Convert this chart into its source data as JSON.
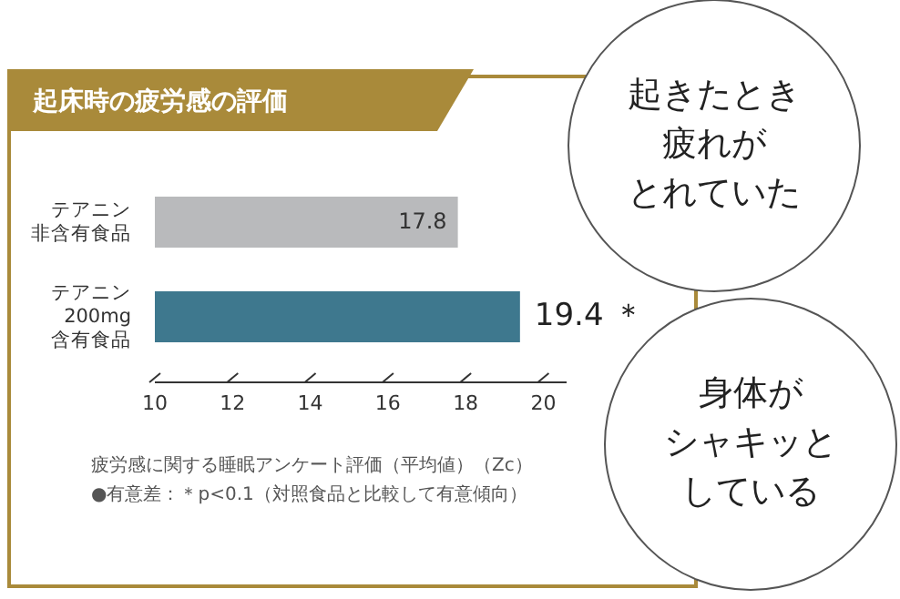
{
  "chart_data": {
    "type": "bar",
    "orientation": "horizontal",
    "title": "起床時の疲労感の評価",
    "categories": [
      "テアニン非含有食品",
      "テアニン200mg含有食品"
    ],
    "values": [
      17.8,
      19.4
    ],
    "colors": [
      "#b9babc",
      "#3e788e"
    ],
    "value_labels": [
      "17.8",
      "19.4 ＊"
    ],
    "xlim": [
      10,
      20.6
    ],
    "xticks": [
      10,
      12,
      14,
      16,
      18,
      20
    ],
    "annotations": [
      "疲労感に関する睡眠アンケート評価（平均値）（Zc）",
      "●有意差：＊p<0.1（対照食品と比較して有意傾向）",
      "起きたとき疲れがとれていた",
      "身体がシャキッとしている"
    ]
  }
}
